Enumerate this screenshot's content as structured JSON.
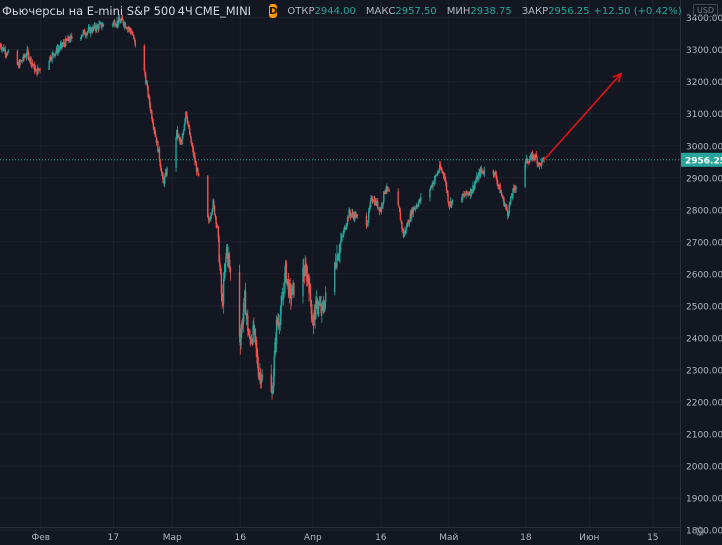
{
  "header": {
    "title": "Фьючерсы на E-mini S&P 500",
    "interval": "4Ч",
    "exchange": "CME_MINI",
    "d_badge": "D",
    "open_label": "ОТКР",
    "open_value": "2944.00",
    "high_label": "МАКС",
    "high_value": "2957.50",
    "low_label": "МИН",
    "low_value": "2938.75",
    "close_label": "ЗАКР",
    "close_value": "2956.25",
    "change": "+12.50 (+0.42%)"
  },
  "currency": "USD",
  "settings_icon": "gear-icon",
  "colors": {
    "background": "#131722",
    "grid": "#1e222d",
    "up": "#26a69a",
    "down": "#ef5350",
    "text": "#b2b5be",
    "arrow": "#e01414",
    "price_line": "#26a69a"
  },
  "chart_data": {
    "type": "candlestick",
    "title": "Фьючерсы на E-mini S&P 500",
    "interval": "4Ч",
    "ylim": [
      1810,
      3455
    ],
    "y_ticks": [
      3400,
      3300,
      3200,
      3100,
      3000,
      2900,
      2800,
      2700,
      2600,
      2500,
      2400,
      2300,
      2200,
      2100,
      2000,
      1900,
      1800
    ],
    "y_tick_labels": [
      "3400.00",
      "3300.00",
      "3200.00",
      "3100.00",
      "3000.00",
      "2900.00",
      "2800.00",
      "2700.00",
      "2600.00",
      "2500.00",
      "2400.00",
      "2300.00",
      "2200.00",
      "2100.00",
      "2000.00",
      "1900.00",
      "1800.00"
    ],
    "x_range": [
      "2020-01-23",
      "2020-06-21"
    ],
    "x_ticks": [
      {
        "date": "2020-02-01",
        "label": "Фев"
      },
      {
        "date": "2020-02-17",
        "label": "17"
      },
      {
        "date": "2020-03-01",
        "label": "Мар"
      },
      {
        "date": "2020-03-16",
        "label": "16"
      },
      {
        "date": "2020-04-01",
        "label": "Апр"
      },
      {
        "date": "2020-04-16",
        "label": "16"
      },
      {
        "date": "2020-05-01",
        "label": "Май"
      },
      {
        "date": "2020-05-18",
        "label": "18"
      },
      {
        "date": "2020-06-01",
        "label": "Июн"
      },
      {
        "date": "2020-06-15",
        "label": "15"
      }
    ],
    "last_price": 2956.25,
    "last_price_label": "2956.25",
    "close_path": [
      [
        "2020-01-23",
        3315
      ],
      [
        "2020-01-27",
        3250
      ],
      [
        "2020-01-29",
        3290
      ],
      [
        "2020-01-31",
        3230
      ],
      [
        "2020-02-04",
        3290
      ],
      [
        "2020-02-07",
        3330
      ],
      [
        "2020-02-11",
        3355
      ],
      [
        "2020-02-14",
        3375
      ],
      [
        "2020-02-19",
        3390
      ],
      [
        "2020-02-21",
        3355
      ],
      [
        "2020-02-24",
        3220
      ],
      [
        "2020-02-25",
        3130
      ],
      [
        "2020-02-27",
        2980
      ],
      [
        "2020-02-28",
        2880
      ],
      [
        "2020-03-02",
        3040
      ],
      [
        "2020-03-03",
        3000
      ],
      [
        "2020-03-04",
        3110
      ],
      [
        "2020-03-05",
        3020
      ],
      [
        "2020-03-06",
        2950
      ],
      [
        "2020-03-09",
        2760
      ],
      [
        "2020-03-10",
        2820
      ],
      [
        "2020-03-11",
        2740
      ],
      [
        "2020-03-12",
        2500
      ],
      [
        "2020-03-13",
        2680
      ],
      [
        "2020-03-16",
        2400
      ],
      [
        "2020-03-17",
        2520
      ],
      [
        "2020-03-18",
        2390
      ],
      [
        "2020-03-19",
        2420
      ],
      [
        "2020-03-20",
        2300
      ],
      [
        "2020-03-23",
        2220
      ],
      [
        "2020-03-24",
        2440
      ],
      [
        "2020-03-25",
        2480
      ],
      [
        "2020-03-26",
        2610
      ],
      [
        "2020-03-27",
        2530
      ],
      [
        "2020-03-30",
        2610
      ],
      [
        "2020-03-31",
        2590
      ],
      [
        "2020-04-01",
        2450
      ],
      [
        "2020-04-02",
        2510
      ],
      [
        "2020-04-03",
        2480
      ],
      [
        "2020-04-06",
        2640
      ],
      [
        "2020-04-08",
        2740
      ],
      [
        "2020-04-09",
        2790
      ],
      [
        "2020-04-13",
        2760
      ],
      [
        "2020-04-14",
        2840
      ],
      [
        "2020-04-16",
        2800
      ],
      [
        "2020-04-17",
        2870
      ],
      [
        "2020-04-20",
        2800
      ],
      [
        "2020-04-21",
        2720
      ],
      [
        "2020-04-23",
        2800
      ],
      [
        "2020-04-27",
        2870
      ],
      [
        "2020-04-29",
        2930
      ],
      [
        "2020-04-30",
        2910
      ],
      [
        "2020-05-01",
        2820
      ],
      [
        "2020-05-04",
        2840
      ],
      [
        "2020-05-06",
        2860
      ],
      [
        "2020-05-08",
        2920
      ],
      [
        "2020-05-11",
        2920
      ],
      [
        "2020-05-13",
        2830
      ],
      [
        "2020-05-14",
        2790
      ],
      [
        "2020-05-15",
        2850
      ],
      [
        "2020-05-18",
        2950
      ],
      [
        "2020-05-20",
        2970
      ],
      [
        "2020-05-21",
        2940
      ],
      [
        "2020-05-22",
        2956
      ]
    ],
    "annotations": [
      {
        "type": "arrow",
        "from": [
          "2020-05-22",
          2956
        ],
        "to": [
          "2020-06-08",
          3225
        ]
      }
    ]
  }
}
